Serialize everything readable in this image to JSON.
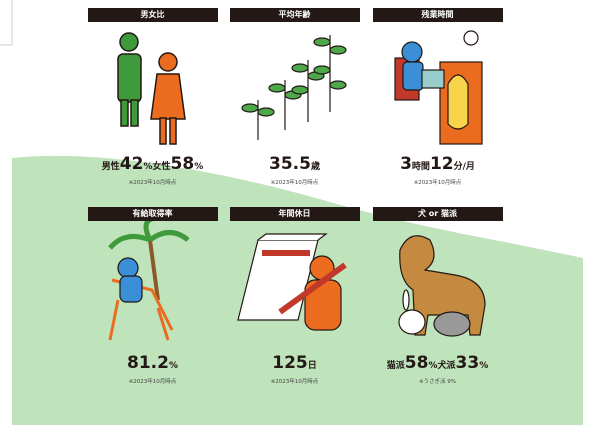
{
  "cards": [
    {
      "title": "男女比",
      "stat": [
        "男性",
        "42",
        "%",
        "女性",
        "58",
        "%"
      ],
      "note": "※2023年10月時点"
    },
    {
      "title": "平均年齢",
      "stat": [
        "35.5",
        "歳"
      ],
      "note": "※2023年10月時点"
    },
    {
      "title": "残業時間",
      "stat": [
        "3",
        "時間",
        "12",
        "分/月"
      ],
      "note": "※2023年10月時点"
    },
    {
      "title": "有給取得率",
      "stat": [
        "81.2",
        "%"
      ],
      "note": "※2023年10月時点"
    },
    {
      "title": "年間休日",
      "stat": [
        "125",
        "日"
      ],
      "note": "※2023年10月時点"
    },
    {
      "title": "犬 or 猫派",
      "stat": [
        "猫派",
        "58",
        "%",
        "犬派",
        "33",
        "%"
      ],
      "note": "※うさぎ派 9%"
    }
  ]
}
